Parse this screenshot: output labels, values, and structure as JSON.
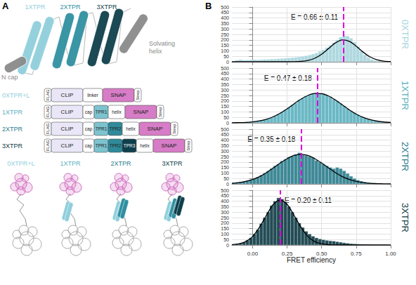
{
  "panel_letters": [
    "A",
    "B"
  ],
  "diagram": {
    "structure_labels": [
      {
        "text": "1XTPR",
        "color": "#8fcfdb"
      },
      {
        "text": "2XTPR",
        "color": "#2f8fa0"
      },
      {
        "text": "3XTPR",
        "color": "#0f3f4b"
      },
      {
        "text": "N cap",
        "color": "#8a8a8a"
      },
      {
        "text": "Solvating helix",
        "color": "#8a8a8a"
      }
    ],
    "constructs": [
      {
        "name": "0XTPR+L",
        "color": "#8fcfdb",
        "domains": [
          {
            "label": "FLAG",
            "color": "#ffffff"
          },
          {
            "label": "CLIP",
            "color": "#e9e7f7",
            "wide": true
          },
          {
            "label": "linker",
            "color": "#ffffff"
          },
          {
            "label": "SNAP",
            "color": "#d77cc6",
            "wide": true
          },
          {
            "label": "Strep",
            "color": "#ffffff"
          }
        ]
      },
      {
        "name": "1XTPR",
        "color": "#5bb0bf",
        "domains": [
          {
            "label": "FLAG",
            "color": "#ffffff"
          },
          {
            "label": "CLIP",
            "color": "#e9e7f7",
            "wide": true
          },
          {
            "label": "cap",
            "color": "#ffffff"
          },
          {
            "label": "TPR1",
            "color": "#7cc3cf"
          },
          {
            "label": "helix",
            "color": "#ffffff"
          },
          {
            "label": "SNAP",
            "color": "#d77cc6",
            "wide": true
          },
          {
            "label": "Strep",
            "color": "#ffffff"
          }
        ]
      },
      {
        "name": "2XTPR",
        "color": "#2a7c8c",
        "domains": [
          {
            "label": "FLAG",
            "color": "#ffffff"
          },
          {
            "label": "CLIP",
            "color": "#e9e7f7",
            "wide": true
          },
          {
            "label": "cap",
            "color": "#ffffff"
          },
          {
            "label": "TPR1",
            "color": "#7cc3cf"
          },
          {
            "label": "TPR2",
            "color": "#2f8a9a"
          },
          {
            "label": "helix",
            "color": "#ffffff"
          },
          {
            "label": "SNAP",
            "color": "#d77cc6",
            "wide": true
          },
          {
            "label": "Strep",
            "color": "#ffffff"
          }
        ]
      },
      {
        "name": "3XTPR",
        "color": "#0c3a44",
        "domains": [
          {
            "label": "FLAG",
            "color": "#ffffff"
          },
          {
            "label": "CLIP",
            "color": "#e9e7f7",
            "wide": true
          },
          {
            "label": "cap",
            "color": "#ffffff"
          },
          {
            "label": "TPR1",
            "color": "#7cc3cf"
          },
          {
            "label": "TPR2",
            "color": "#2f8a9a"
          },
          {
            "label": "TPR3",
            "color": "#0f3f4b"
          },
          {
            "label": "helix",
            "color": "#ffffff"
          },
          {
            "label": "SNAP",
            "color": "#d77cc6",
            "wide": true
          },
          {
            "label": "Strep",
            "color": "#ffffff"
          }
        ]
      }
    ],
    "models": [
      {
        "text": "0XTPR+L",
        "color": "#8fcfdb"
      },
      {
        "text": "1XTPR",
        "color": "#5bb0bf"
      },
      {
        "text": "2XTPR",
        "color": "#2a7c8c"
      },
      {
        "text": "3XTPR",
        "color": "#0c3a44"
      }
    ]
  },
  "chart_data": [
    {
      "type": "histogram",
      "title": "0XTPR",
      "color": "#a6d5dd",
      "bins": [
        -0.15,
        -0.125,
        -0.1,
        -0.075,
        -0.05,
        -0.025,
        0,
        0.025,
        0.05,
        0.075,
        0.1,
        0.125,
        0.15,
        0.175,
        0.2,
        0.225,
        0.25,
        0.275,
        0.3,
        0.325,
        0.35,
        0.375,
        0.4,
        0.425,
        0.45,
        0.475,
        0.5,
        0.525,
        0.55,
        0.575,
        0.6,
        0.625,
        0.65,
        0.675,
        0.7,
        0.725,
        0.75,
        0.775,
        0.8,
        0.825,
        0.85,
        0.875,
        0.9,
        0.925,
        0.95,
        0.975,
        1.0
      ],
      "counts": [
        5,
        15,
        20,
        15,
        15,
        18,
        20,
        18,
        20,
        22,
        22,
        25,
        25,
        28,
        30,
        32,
        35,
        38,
        40,
        45,
        50,
        55,
        62,
        70,
        80,
        95,
        110,
        130,
        150,
        175,
        200,
        225,
        240,
        235,
        215,
        180,
        140,
        100,
        65,
        40,
        22,
        12,
        6,
        3,
        1,
        0
      ],
      "fit": {
        "x": [
          -0.15,
          -0.1,
          -0.05,
          0,
          0.05,
          0.1,
          0.15,
          0.2,
          0.25,
          0.3,
          0.35,
          0.4,
          0.45,
          0.5,
          0.55,
          0.6,
          0.65,
          0.7,
          0.75,
          0.8,
          0.85,
          0.9,
          0.95,
          1.0
        ],
        "y": [
          0,
          0,
          0,
          0,
          0,
          0,
          0,
          0,
          0,
          1,
          4,
          12,
          32,
          69,
          121,
          172,
          199,
          187,
          143,
          89,
          45,
          19,
          6,
          2
        ]
      },
      "mean": 0.66,
      "annotation": "E = 0.66 ± 0.11",
      "xlim": [
        -0.15,
        1.0
      ],
      "xticks": [
        {
          "value": 0,
          "label": "0.00"
        },
        {
          "value": 0.25,
          "label": "0.25"
        },
        {
          "value": 0.5,
          "label": "0.50"
        },
        {
          "value": 0.75,
          "label": "0.75"
        },
        {
          "value": 1,
          "label": "1.00"
        }
      ],
      "ylim": [
        0,
        500
      ],
      "yticks": [
        0,
        50,
        100,
        150,
        200,
        250,
        300,
        350,
        400,
        450,
        500
      ],
      "grid": true,
      "tick_labels": "y"
    },
    {
      "type": "histogram",
      "title": "1XTPR",
      "color": "#5bb0bf",
      "bins": [
        -0.15,
        -0.125,
        -0.1,
        -0.075,
        -0.05,
        -0.025,
        0,
        0.025,
        0.05,
        0.075,
        0.1,
        0.125,
        0.15,
        0.175,
        0.2,
        0.225,
        0.25,
        0.275,
        0.3,
        0.325,
        0.35,
        0.375,
        0.4,
        0.425,
        0.45,
        0.475,
        0.5,
        0.525,
        0.55,
        0.575,
        0.6,
        0.625,
        0.65,
        0.675,
        0.7,
        0.725,
        0.75,
        0.775,
        0.8,
        0.825,
        0.85,
        0.875,
        0.9,
        0.925,
        0.95,
        0.975,
        1.0
      ],
      "counts": [
        3,
        4,
        5,
        6,
        8,
        10,
        14,
        18,
        24,
        30,
        38,
        50,
        62,
        80,
        98,
        118,
        140,
        165,
        180,
        210,
        225,
        245,
        255,
        270,
        275,
        265,
        260,
        250,
        240,
        215,
        200,
        178,
        155,
        130,
        110,
        92,
        75,
        58,
        45,
        35,
        26,
        18,
        12,
        8,
        5,
        3
      ],
      "fit": {
        "x": [
          -0.15,
          -0.1,
          -0.05,
          0,
          0.05,
          0.1,
          0.15,
          0.2,
          0.25,
          0.3,
          0.35,
          0.4,
          0.45,
          0.5,
          0.55,
          0.6,
          0.65,
          0.7,
          0.75,
          0.8,
          0.85,
          0.9,
          0.95,
          1.0
        ],
        "y": [
          1,
          2,
          4,
          9,
          18,
          33,
          56,
          88,
          128,
          173,
          216,
          250,
          268,
          266,
          245,
          208,
          164,
          119,
          80,
          50,
          29,
          16,
          8,
          4
        ]
      },
      "mean": 0.47,
      "annotation": "E = 0.47 ± 0.18",
      "xlim": [
        -0.15,
        1.0
      ],
      "xticks": [
        {
          "value": 0,
          "label": "0.00"
        },
        {
          "value": 0.25,
          "label": "0.25"
        },
        {
          "value": 0.5,
          "label": "0.50"
        },
        {
          "value": 0.75,
          "label": "0.75"
        },
        {
          "value": 1,
          "label": "1.00"
        }
      ],
      "ylim": [
        0,
        500
      ],
      "yticks": [
        0,
        50,
        100,
        150,
        200,
        250,
        300,
        350,
        400,
        450,
        500
      ],
      "grid": true,
      "tick_labels": "y"
    },
    {
      "type": "histogram",
      "title": "2XTPR",
      "color": "#2a7c8c",
      "bins": [
        -0.15,
        -0.125,
        -0.1,
        -0.075,
        -0.05,
        -0.025,
        0,
        0.025,
        0.05,
        0.075,
        0.1,
        0.125,
        0.15,
        0.175,
        0.2,
        0.225,
        0.25,
        0.275,
        0.3,
        0.325,
        0.35,
        0.375,
        0.4,
        0.425,
        0.45,
        0.475,
        0.5,
        0.525,
        0.55,
        0.575,
        0.6,
        0.625,
        0.65,
        0.675,
        0.7,
        0.725,
        0.75,
        0.775,
        0.8,
        0.825,
        0.85,
        0.875,
        0.9,
        0.925,
        0.95,
        0.975,
        1.0
      ],
      "counts": [
        10,
        14,
        18,
        24,
        30,
        38,
        50,
        62,
        80,
        98,
        118,
        140,
        165,
        180,
        210,
        225,
        245,
        255,
        270,
        285,
        265,
        260,
        250,
        240,
        215,
        200,
        180,
        165,
        150,
        140,
        150,
        140,
        120,
        95,
        70,
        50,
        35,
        26,
        18,
        12,
        8,
        5,
        3,
        2,
        1,
        1
      ],
      "fit": {
        "x": [
          -0.15,
          -0.1,
          -0.05,
          0,
          0.05,
          0.1,
          0.15,
          0.2,
          0.25,
          0.3,
          0.35,
          0.4,
          0.45,
          0.5,
          0.55,
          0.6,
          0.65,
          0.7,
          0.75,
          0.8,
          0.85,
          0.9,
          0.95,
          1.0
        ],
        "y": [
          6,
          12,
          23,
          41,
          67,
          103,
          146,
          191,
          231,
          260,
          270,
          260,
          231,
          191,
          146,
          103,
          67,
          41,
          23,
          12,
          6,
          3,
          1,
          0
        ]
      },
      "mean": 0.35,
      "annotation": "E = 0.35 ± 0.18",
      "xlim": [
        -0.15,
        1.0
      ],
      "xticks": [
        {
          "value": 0,
          "label": "0.00"
        },
        {
          "value": 0.25,
          "label": "0.25"
        },
        {
          "value": 0.5,
          "label": "0.50"
        },
        {
          "value": 0.75,
          "label": "0.75"
        },
        {
          "value": 1,
          "label": "1.00"
        }
      ],
      "ylim": [
        0,
        500
      ],
      "yticks": [
        0,
        50,
        100,
        150,
        200,
        250,
        300,
        350,
        400,
        450,
        500
      ],
      "grid": true,
      "tick_labels": "y"
    },
    {
      "type": "histogram",
      "title": "3XTPR",
      "color": "#0c3a44",
      "bins": [
        -0.15,
        -0.125,
        -0.1,
        -0.075,
        -0.05,
        -0.025,
        0,
        0.025,
        0.05,
        0.075,
        0.1,
        0.125,
        0.15,
        0.175,
        0.2,
        0.225,
        0.25,
        0.275,
        0.3,
        0.325,
        0.35,
        0.375,
        0.4,
        0.425,
        0.45,
        0.475,
        0.5,
        0.525,
        0.55,
        0.575,
        0.6,
        0.625,
        0.65,
        0.675,
        0.7,
        0.725,
        0.75,
        0.775,
        0.8,
        0.825,
        0.85,
        0.875,
        0.9,
        0.925,
        0.95,
        0.975,
        1.0
      ],
      "counts": [
        4,
        8,
        14,
        25,
        42,
        65,
        100,
        140,
        195,
        250,
        300,
        360,
        400,
        430,
        420,
        395,
        350,
        300,
        250,
        200,
        160,
        125,
        100,
        80,
        65,
        55,
        48,
        42,
        38,
        35,
        30,
        25,
        20,
        16,
        12,
        10,
        8,
        6,
        5,
        4,
        3,
        2,
        2,
        1,
        1,
        0
      ],
      "fit": {
        "x": [
          -0.15,
          -0.1,
          -0.05,
          0,
          0.05,
          0.1,
          0.15,
          0.2,
          0.25,
          0.3,
          0.35,
          0.4,
          0.45,
          0.5,
          0.55,
          0.6,
          0.65,
          0.7,
          0.75,
          0.8,
          0.85,
          0.9,
          0.95,
          1.0
        ],
        "y": [
          3,
          10,
          31,
          78,
          162,
          271,
          370,
          410,
          370,
          271,
          162,
          78,
          31,
          10,
          3,
          1,
          0,
          0,
          0,
          0,
          0,
          0,
          0,
          0
        ]
      },
      "mean": 0.2,
      "annotation": "E = 0.20 ± 0.11",
      "xlim": [
        -0.15,
        1.0
      ],
      "xticks": [
        {
          "value": 0,
          "label": "0.00"
        },
        {
          "value": 0.25,
          "label": "0.25"
        },
        {
          "value": 0.5,
          "label": "0.50"
        },
        {
          "value": 0.75,
          "label": "0.75"
        },
        {
          "value": 1,
          "label": "1.00"
        }
      ],
      "ylim": [
        0,
        500
      ],
      "yticks": [
        0,
        50,
        100,
        150,
        200,
        250,
        300,
        350,
        400,
        450,
        500
      ],
      "grid": true,
      "x_label": "FRET efficiency"
    }
  ]
}
